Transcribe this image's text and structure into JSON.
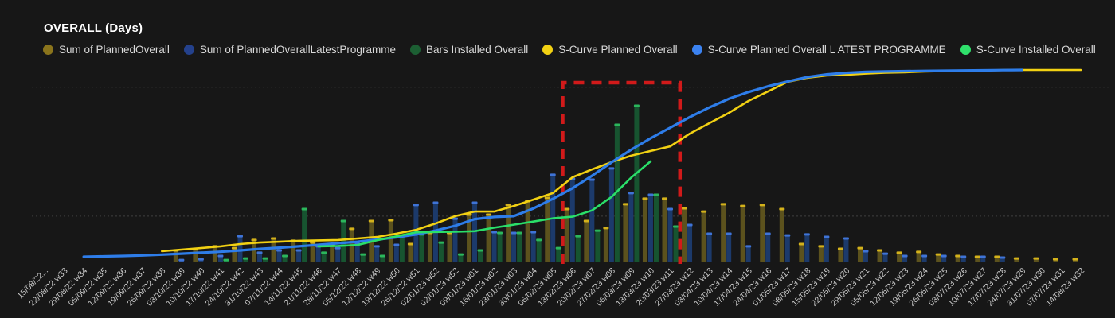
{
  "header": {
    "title": "OVERALL (Days)"
  },
  "legend": {
    "items": [
      {
        "label": "Sum of PlannedOverall",
        "color": "#8a741c"
      },
      {
        "label": "Sum of PlannedOverallLatestProgramme",
        "color": "#24418c"
      },
      {
        "label": "Bars Installed Overall",
        "color": "#1c5f33"
      },
      {
        "label": "S-Curve Planned Overall",
        "color": "#f2d113"
      },
      {
        "label": "S-Curve Planned Overall L ATEST PROGRAMME",
        "color": "#3b82f0"
      },
      {
        "label": "S-Curve Installed Overall",
        "color": "#2fe06b"
      }
    ]
  },
  "chart_data": {
    "type": "bar",
    "subtype": "combo-bar-line",
    "title": "OVERALL (Days)",
    "xlabel": "",
    "ylabel": "",
    "ylim": [
      0,
      100
    ],
    "y_axis_labels_visible": false,
    "grid": "horizontal-dotted",
    "gridline_values": [
      91,
      24
    ],
    "legend_position": "top",
    "categories": [
      "15/08/22...",
      "22/08/22 w33",
      "29/08/22 w34",
      "05/09/22 w35",
      "12/09/22 w36",
      "19/09/22 w37",
      "26/09/22 w38",
      "03/10/22 w39",
      "10/10/22 w40",
      "17/10/22 w41",
      "24/10/22 w42",
      "31/10/22 w43",
      "07/11/22 w44",
      "14/11/22 w45",
      "21/11/22 w46",
      "28/11/22 w47",
      "05/12/22 w48",
      "12/12/22 w49",
      "19/12/22 w50",
      "26/12/22 w51",
      "02/01/23 w52",
      "02/01/23 w52",
      "09/01/23 w01",
      "16/01/23 w02",
      "23/01/23 w03",
      "30/01/23 w04",
      "06/02/23 w05",
      "13/02/23 w06",
      "20/02/23 w07",
      "27/02/23 w08",
      "06/03/23 w09",
      "13/03/23 w10",
      "20/03/23 w11",
      "27/03/23 w12",
      "03/04/23 w13",
      "10/04/23 w14",
      "17/04/23 w15",
      "24/04/23 w16",
      "01/05/23 w17",
      "08/05/23 w18",
      "15/05/23 w19",
      "22/05/23 w20",
      "29/05/23 w21",
      "05/06/23 w22",
      "12/06/23 w23",
      "19/06/23 w24",
      "26/06/23 w25",
      "03/07/23 w26",
      "10/07/23 w27",
      "17/07/23 w28",
      "24/07/23 w29",
      "31/07/23 w30",
      "07/07/23 w31",
      "14/08/23 w32"
    ],
    "bar_series": [
      {
        "name": "Sum of PlannedOverall",
        "color": "#5c521d",
        "cap_color": "#d4b21b",
        "values": [
          0,
          0,
          0,
          0,
          0,
          0,
          0,
          6.2,
          7,
          8.3,
          7.4,
          11.6,
          12.4,
          11.2,
          10.3,
          9.1,
          17.4,
          21.5,
          21.9,
          9.5,
          15.3,
          15.3,
          24.8,
          24.8,
          29.8,
          31.8,
          33.5,
          27.7,
          21.5,
          17.8,
          30.2,
          33.1,
          33.1,
          28.1,
          26.4,
          30.2,
          29.3,
          29.8,
          27.7,
          9.5,
          8.3,
          7,
          7.4,
          6.2,
          5,
          5.4,
          4.1,
          3.3,
          2.9,
          2.9,
          2,
          2,
          1.6,
          1.6
        ]
      },
      {
        "name": "Sum of PlannedOverallLatestProgramme",
        "color": "#1c3a6b",
        "cap_color": "#3f74d8",
        "values": [
          0,
          0,
          0,
          0,
          0,
          0,
          0,
          1.2,
          1.6,
          3.3,
          13.6,
          5,
          6.2,
          6.2,
          8.3,
          7.4,
          9.5,
          8.3,
          9.1,
          29.8,
          31,
          22.7,
          31,
          15.7,
          15.3,
          15.7,
          45.5,
          43.4,
          43,
          48.8,
          36,
          35.1,
          27.7,
          19.4,
          14.9,
          14.9,
          8.3,
          14.9,
          14,
          14.5,
          13.2,
          12.4,
          5.8,
          4.5,
          3.3,
          3.3,
          3.3,
          2.9,
          2.9,
          2.5,
          0,
          0,
          0,
          0
        ]
      },
      {
        "name": "Bars Installed Overall",
        "color": "#175430",
        "cap_color": "#2bb75c",
        "values": [
          0,
          0,
          0,
          0,
          0,
          0,
          0,
          0,
          0,
          1.2,
          2,
          2,
          3.3,
          27.7,
          5,
          21.5,
          4.1,
          3.3,
          13.6,
          14.5,
          10.3,
          4.1,
          6.2,
          15.3,
          15.3,
          11.6,
          7.4,
          13.6,
          16.5,
          71.5,
          81.4,
          35.1,
          18.6,
          0,
          0,
          0,
          0,
          0,
          0,
          0,
          0,
          0,
          0,
          0,
          0,
          0,
          0,
          0,
          0,
          0,
          0,
          0,
          0,
          0
        ]
      }
    ],
    "line_series": [
      {
        "name": "S-Curve Planned Overall",
        "color": "#f2d113",
        "values": [
          null,
          null,
          null,
          null,
          null,
          null,
          5.8,
          6.6,
          7.4,
          8.3,
          9.5,
          10.3,
          10.7,
          11.2,
          11.4,
          11.6,
          12.4,
          13.2,
          14.9,
          16.9,
          20.2,
          24,
          26.4,
          26.4,
          29.3,
          32.6,
          36,
          44.2,
          48.3,
          52.1,
          55.4,
          57.9,
          60.3,
          66.9,
          72.3,
          77.7,
          83.9,
          88.8,
          93.8,
          95.9,
          97.1,
          97.5,
          98.1,
          98.6,
          98.8,
          99.2,
          99.4,
          99.6,
          99.8,
          99.9,
          100,
          100,
          100,
          100
        ]
      },
      {
        "name": "S-Curve Planned Overall L ATEST PROGRAMME",
        "color": "#2e7de9",
        "values": [
          null,
          null,
          2.9,
          3.1,
          3.3,
          3.6,
          4,
          4.5,
          5,
          5.5,
          6.2,
          7,
          7.6,
          8.3,
          9.1,
          9.9,
          10.7,
          11.8,
          13,
          14.5,
          16.5,
          19,
          22.5,
          23.6,
          24,
          28,
          33,
          38.5,
          45,
          52,
          58.5,
          64.5,
          70,
          75.5,
          80.5,
          85,
          88.5,
          91.5,
          94,
          96.3,
          97.7,
          98.5,
          99,
          99.2,
          99.4,
          99.5,
          99.6,
          99.7,
          99.8,
          99.9,
          100,
          null,
          null,
          null
        ]
      },
      {
        "name": "S-Curve Installed Overall",
        "color": "#2adf69",
        "values": [
          null,
          null,
          null,
          null,
          null,
          null,
          null,
          null,
          null,
          null,
          null,
          null,
          null,
          null,
          8.3,
          8.5,
          9,
          11.5,
          13.5,
          15.6,
          15.8,
          15.9,
          16.2,
          18,
          19.6,
          21.2,
          22.9,
          23.7,
          27,
          34,
          44,
          52.5,
          null,
          null,
          null,
          null,
          null,
          null,
          null,
          null,
          null,
          null,
          null,
          null,
          null,
          null,
          null,
          null,
          null,
          null,
          null,
          null,
          null,
          null
        ]
      }
    ],
    "highlight_box": {
      "from_index": 26.5,
      "to_index": 32.5,
      "top_value": 93.4,
      "color": "#d11a1a",
      "style": "dashed",
      "covers_labels": [
        "13/02/23 w06",
        "20/03/23 w11"
      ]
    }
  }
}
